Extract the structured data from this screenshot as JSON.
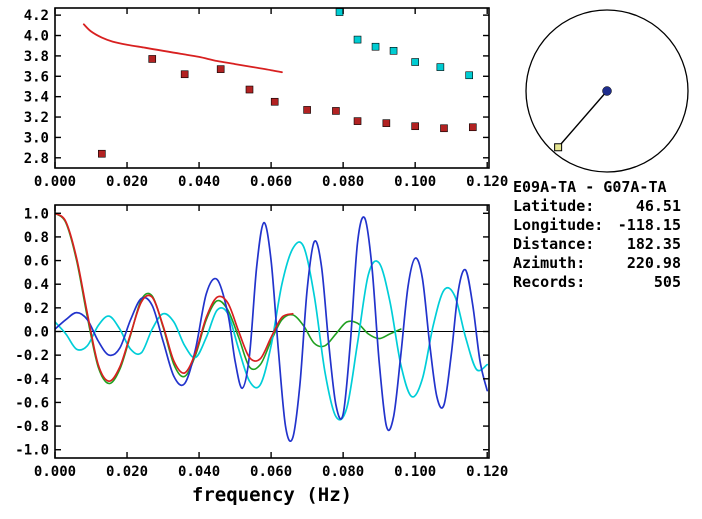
{
  "station_info": {
    "pair": "E09A-TA - G07A-TA",
    "rows": [
      {
        "label": "Latitude:",
        "value": "46.51"
      },
      {
        "label": "Longitude:",
        "value": "-118.15"
      },
      {
        "label": "Distance:",
        "value": "182.35"
      },
      {
        "label": "Azimuth:",
        "value": "220.98"
      },
      {
        "label": "Records:",
        "value": "505"
      }
    ]
  },
  "azimuth_diagram": {
    "azimuth_deg": 220.98,
    "circle_color": "#000000",
    "center_dot_color": "#1f2d8c",
    "marker_fill": "#e6e692"
  },
  "chart_data": [
    {
      "name": "dispersion-panel",
      "type": "scatter",
      "title": "",
      "xlabel": "",
      "ylabel": "",
      "xlim": [
        0,
        0.1205
      ],
      "ylim": [
        2.7,
        4.27
      ],
      "grid": false,
      "legend": null,
      "x_ticks": {
        "values": [
          0,
          0.02,
          0.04,
          0.06,
          0.08,
          0.1,
          0.12
        ],
        "labels": [
          "0.000",
          "0.020",
          "0.040",
          "0.060",
          "0.080",
          "0.100",
          "0.120"
        ]
      },
      "y_ticks": {
        "values": [
          2.8,
          3.0,
          3.2,
          3.4,
          3.6,
          3.8,
          4.0,
          4.2
        ],
        "labels": [
          "2.8",
          "3.0",
          "3.2",
          "3.4",
          "3.6",
          "3.8",
          "4.0",
          "4.2"
        ]
      },
      "series": [
        {
          "name": "reference-curve",
          "type": "line",
          "color": "#d82020",
          "width": 1.8,
          "points": [
            [
              0.008,
              4.11
            ],
            [
              0.01,
              4.04
            ],
            [
              0.013,
              3.98
            ],
            [
              0.016,
              3.94
            ],
            [
              0.02,
              3.91
            ],
            [
              0.025,
              3.88
            ],
            [
              0.03,
              3.85
            ],
            [
              0.035,
              3.82
            ],
            [
              0.04,
              3.79
            ],
            [
              0.045,
              3.75
            ],
            [
              0.05,
              3.72
            ],
            [
              0.055,
              3.69
            ],
            [
              0.06,
              3.66
            ],
            [
              0.063,
              3.64
            ]
          ]
        },
        {
          "name": "red-square-measurements",
          "type": "scatter",
          "marker": "square",
          "marker_size": 7,
          "color": "#b22222",
          "points": [
            [
              0.013,
              2.84
            ],
            [
              0.027,
              3.77
            ],
            [
              0.036,
              3.62
            ],
            [
              0.046,
              3.67
            ],
            [
              0.054,
              3.47
            ],
            [
              0.061,
              3.35
            ],
            [
              0.07,
              3.27
            ],
            [
              0.078,
              3.26
            ],
            [
              0.084,
              3.16
            ],
            [
              0.092,
              3.14
            ],
            [
              0.1,
              3.11
            ],
            [
              0.108,
              3.09
            ],
            [
              0.116,
              3.1
            ]
          ]
        },
        {
          "name": "cyan-square-measurements",
          "type": "scatter",
          "marker": "square",
          "marker_size": 7,
          "color": "#00ccd2",
          "points": [
            [
              0.079,
              4.23
            ],
            [
              0.084,
              3.96
            ],
            [
              0.089,
              3.89
            ],
            [
              0.094,
              3.85
            ],
            [
              0.1,
              3.74
            ],
            [
              0.107,
              3.69
            ],
            [
              0.115,
              3.61
            ]
          ]
        }
      ]
    },
    {
      "name": "waveform-panel",
      "type": "line",
      "title": "",
      "xlabel": "frequency (Hz)",
      "ylabel": "",
      "xlim": [
        0,
        0.1205
      ],
      "ylim": [
        -1.07,
        1.07
      ],
      "zero_line": true,
      "grid": false,
      "legend": null,
      "x_ticks": {
        "values": [
          0,
          0.02,
          0.04,
          0.06,
          0.08,
          0.1,
          0.12
        ],
        "labels": [
          "0.000",
          "0.020",
          "0.040",
          "0.060",
          "0.080",
          "0.100",
          "0.120"
        ]
      },
      "y_ticks": {
        "values": [
          1.0,
          0.8,
          0.6,
          0.4,
          0.2,
          0.0,
          -0.2,
          -0.4,
          -0.6,
          -0.8,
          -1.0
        ],
        "labels": [
          "1.0",
          "0.8",
          "0.6",
          "0.4",
          "0.2",
          "0.0",
          "-0.2",
          "-0.4",
          "-0.6",
          "-0.8",
          "-1.0"
        ]
      },
      "series": [
        {
          "name": "curve-green",
          "type": "line",
          "color": "#20a020",
          "width": 1.6,
          "points": [
            [
              0.0,
              1.0
            ],
            [
              0.003,
              0.92
            ],
            [
              0.006,
              0.6
            ],
            [
              0.009,
              0.12
            ],
            [
              0.012,
              -0.3
            ],
            [
              0.015,
              -0.44
            ],
            [
              0.018,
              -0.32
            ],
            [
              0.021,
              -0.03
            ],
            [
              0.024,
              0.27
            ],
            [
              0.027,
              0.3
            ],
            [
              0.03,
              0.04
            ],
            [
              0.033,
              -0.28
            ],
            [
              0.036,
              -0.38
            ],
            [
              0.039,
              -0.2
            ],
            [
              0.042,
              0.1
            ],
            [
              0.045,
              0.26
            ],
            [
              0.048,
              0.18
            ],
            [
              0.051,
              -0.05
            ],
            [
              0.054,
              -0.3
            ],
            [
              0.057,
              -0.28
            ],
            [
              0.06,
              -0.08
            ],
            [
              0.063,
              0.1
            ],
            [
              0.066,
              0.14
            ],
            [
              0.069,
              0.05
            ],
            [
              0.072,
              -0.1
            ],
            [
              0.075,
              -0.12
            ],
            [
              0.078,
              -0.02
            ],
            [
              0.081,
              0.08
            ],
            [
              0.084,
              0.07
            ],
            [
              0.087,
              -0.02
            ],
            [
              0.09,
              -0.06
            ],
            [
              0.093,
              -0.02
            ],
            [
              0.096,
              0.02
            ]
          ]
        },
        {
          "name": "curve-cyan",
          "type": "line",
          "color": "#00ced8",
          "width": 1.7,
          "points": [
            [
              0.0,
              0.08
            ],
            [
              0.003,
              -0.02
            ],
            [
              0.006,
              -0.15
            ],
            [
              0.009,
              -0.12
            ],
            [
              0.012,
              0.05
            ],
            [
              0.015,
              0.13
            ],
            [
              0.018,
              0.02
            ],
            [
              0.021,
              -0.15
            ],
            [
              0.024,
              -0.18
            ],
            [
              0.027,
              0.02
            ],
            [
              0.03,
              0.15
            ],
            [
              0.033,
              0.08
            ],
            [
              0.036,
              -0.12
            ],
            [
              0.039,
              -0.22
            ],
            [
              0.042,
              -0.05
            ],
            [
              0.045,
              0.18
            ],
            [
              0.048,
              0.15
            ],
            [
              0.051,
              -0.15
            ],
            [
              0.054,
              -0.42
            ],
            [
              0.057,
              -0.45
            ],
            [
              0.06,
              -0.12
            ],
            [
              0.063,
              0.4
            ],
            [
              0.066,
              0.7
            ],
            [
              0.069,
              0.72
            ],
            [
              0.072,
              0.3
            ],
            [
              0.075,
              -0.35
            ],
            [
              0.078,
              -0.72
            ],
            [
              0.081,
              -0.65
            ],
            [
              0.084,
              -0.1
            ],
            [
              0.087,
              0.48
            ],
            [
              0.09,
              0.58
            ],
            [
              0.093,
              0.25
            ],
            [
              0.096,
              -0.28
            ],
            [
              0.099,
              -0.55
            ],
            [
              0.102,
              -0.4
            ],
            [
              0.105,
              0.05
            ],
            [
              0.108,
              0.35
            ],
            [
              0.111,
              0.3
            ],
            [
              0.114,
              -0.05
            ],
            [
              0.117,
              -0.32
            ],
            [
              0.12,
              -0.28
            ]
          ]
        },
        {
          "name": "curve-blue",
          "type": "line",
          "color": "#2233cc",
          "width": 1.7,
          "points": [
            [
              0.0,
              0.02
            ],
            [
              0.003,
              0.1
            ],
            [
              0.006,
              0.16
            ],
            [
              0.009,
              0.1
            ],
            [
              0.012,
              -0.08
            ],
            [
              0.015,
              -0.2
            ],
            [
              0.018,
              -0.14
            ],
            [
              0.021,
              0.1
            ],
            [
              0.024,
              0.28
            ],
            [
              0.027,
              0.22
            ],
            [
              0.03,
              -0.08
            ],
            [
              0.033,
              -0.38
            ],
            [
              0.036,
              -0.44
            ],
            [
              0.039,
              -0.15
            ],
            [
              0.042,
              0.32
            ],
            [
              0.045,
              0.44
            ],
            [
              0.048,
              0.15
            ],
            [
              0.05,
              -0.25
            ],
            [
              0.052,
              -0.48
            ],
            [
              0.054,
              -0.2
            ],
            [
              0.056,
              0.55
            ],
            [
              0.058,
              0.92
            ],
            [
              0.06,
              0.6
            ],
            [
              0.062,
              -0.15
            ],
            [
              0.064,
              -0.8
            ],
            [
              0.066,
              -0.9
            ],
            [
              0.068,
              -0.45
            ],
            [
              0.07,
              0.35
            ],
            [
              0.072,
              0.76
            ],
            [
              0.074,
              0.55
            ],
            [
              0.076,
              -0.1
            ],
            [
              0.078,
              -0.62
            ],
            [
              0.08,
              -0.7
            ],
            [
              0.082,
              -0.1
            ],
            [
              0.084,
              0.75
            ],
            [
              0.086,
              0.96
            ],
            [
              0.088,
              0.55
            ],
            [
              0.09,
              -0.25
            ],
            [
              0.092,
              -0.8
            ],
            [
              0.094,
              -0.72
            ],
            [
              0.096,
              -0.2
            ],
            [
              0.098,
              0.38
            ],
            [
              0.1,
              0.62
            ],
            [
              0.102,
              0.45
            ],
            [
              0.104,
              -0.1
            ],
            [
              0.106,
              -0.55
            ],
            [
              0.108,
              -0.62
            ],
            [
              0.11,
              -0.2
            ],
            [
              0.112,
              0.35
            ],
            [
              0.114,
              0.52
            ],
            [
              0.116,
              0.22
            ],
            [
              0.118,
              -0.25
            ],
            [
              0.12,
              -0.5
            ]
          ]
        },
        {
          "name": "curve-red",
          "type": "line",
          "color": "#d82020",
          "width": 1.7,
          "points": [
            [
              0.0,
              1.0
            ],
            [
              0.003,
              0.93
            ],
            [
              0.006,
              0.62
            ],
            [
              0.009,
              0.15
            ],
            [
              0.012,
              -0.28
            ],
            [
              0.015,
              -0.42
            ],
            [
              0.018,
              -0.3
            ],
            [
              0.021,
              -0.02
            ],
            [
              0.024,
              0.25
            ],
            [
              0.027,
              0.29
            ],
            [
              0.03,
              0.05
            ],
            [
              0.033,
              -0.25
            ],
            [
              0.036,
              -0.35
            ],
            [
              0.039,
              -0.18
            ],
            [
              0.042,
              0.12
            ],
            [
              0.045,
              0.29
            ],
            [
              0.048,
              0.24
            ],
            [
              0.051,
              0.0
            ],
            [
              0.054,
              -0.22
            ],
            [
              0.057,
              -0.23
            ],
            [
              0.06,
              -0.05
            ],
            [
              0.063,
              0.12
            ],
            [
              0.066,
              0.15
            ]
          ]
        }
      ]
    }
  ]
}
